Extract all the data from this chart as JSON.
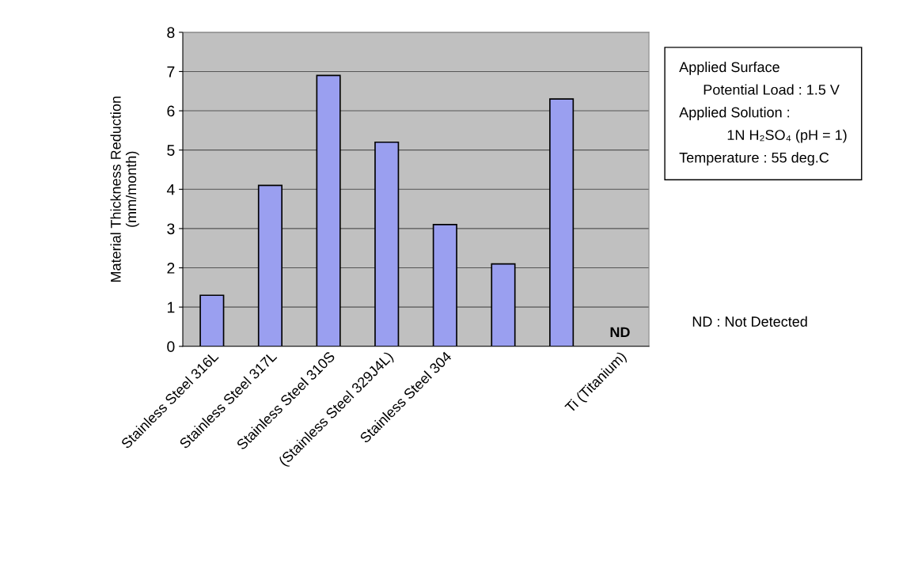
{
  "chart_data": {
    "type": "bar",
    "ylabel": "Material Thickness Reduction\n(mm/month)",
    "categories": [
      "Stainless Steel 316L",
      "Stainless Steel 317L",
      "Stainless Steel 310S",
      "(Stainless Steel 329J4L)",
      "Stainless Steel 304",
      null,
      null,
      "Ti (Titanium)"
    ],
    "values": [
      1.3,
      4.1,
      6.9,
      5.2,
      3.1,
      2.1,
      6.3,
      null
    ],
    "color": "#9a9ff0",
    "ylim": [
      0,
      8
    ],
    "yticks": [
      0,
      1,
      2,
      3,
      4,
      5,
      6,
      7,
      8
    ],
    "grid": "y",
    "annotations": [
      "ND",
      "Applied Surface\n      Potential Load : 1.5 V\nApplied Solution :\n            1N H₂SO₄ (pH = 1)\nTemperature : 55 deg.C",
      "ND : Not Detected"
    ]
  }
}
